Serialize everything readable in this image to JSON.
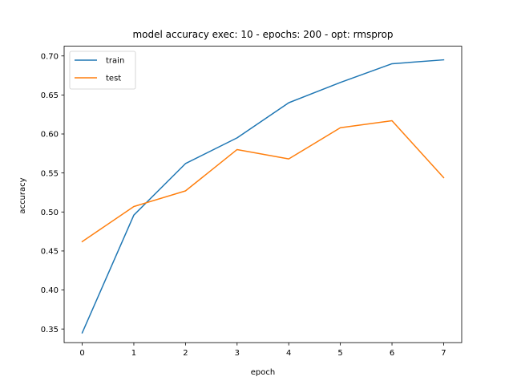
{
  "chart_data": {
    "type": "line",
    "title": "model accuracy exec: 10 - epochs: 200 - opt: rmsprop",
    "xlabel": "epoch",
    "ylabel": "accuracy",
    "x": [
      0,
      1,
      2,
      3,
      4,
      5,
      6,
      7
    ],
    "xlim": [
      -0.35,
      7.35
    ],
    "ylim": [
      0.3325,
      0.7125
    ],
    "xticks": [
      "0",
      "1",
      "2",
      "3",
      "4",
      "5",
      "6",
      "7"
    ],
    "yticks": [
      "0.35",
      "0.40",
      "0.45",
      "0.50",
      "0.55",
      "0.60",
      "0.65",
      "0.70"
    ],
    "grid": false,
    "legend_position": "top-left",
    "series": [
      {
        "name": "train",
        "color": "#1f77b4",
        "values": [
          0.345,
          0.496,
          0.562,
          0.595,
          0.64,
          0.666,
          0.69,
          0.695
        ]
      },
      {
        "name": "test",
        "color": "#ff7f0e",
        "values": [
          0.462,
          0.507,
          0.527,
          0.58,
          0.568,
          0.608,
          0.617,
          0.544
        ]
      }
    ]
  }
}
